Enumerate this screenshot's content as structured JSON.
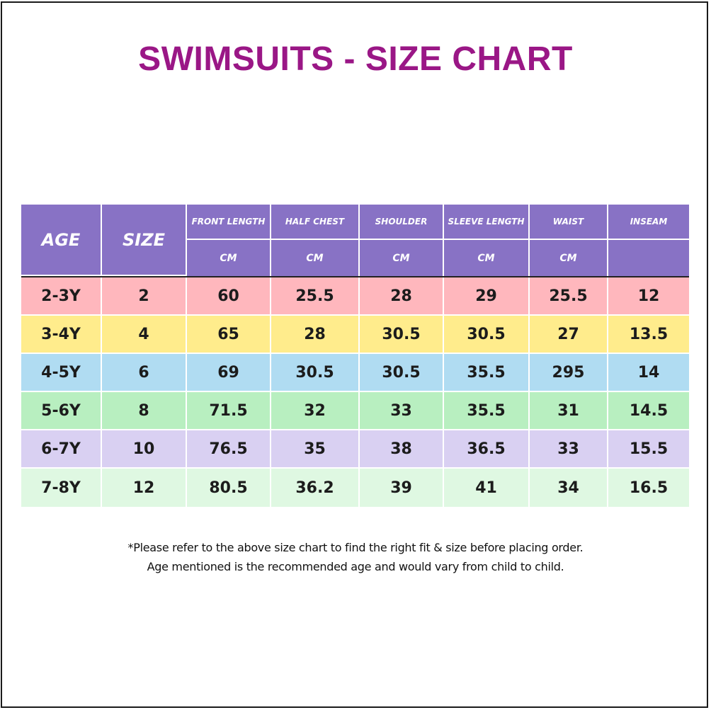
{
  "title": "SWIMSUITS - SIZE CHART",
  "table": {
    "headers": [
      {
        "label": "AGE",
        "unit": ""
      },
      {
        "label": "SIZE",
        "unit": ""
      },
      {
        "label": "FRONT LENGTH",
        "unit": "CM"
      },
      {
        "label": "HALF CHEST",
        "unit": "CM"
      },
      {
        "label": "SHOULDER",
        "unit": "CM"
      },
      {
        "label": "SLEEVE LENGTH",
        "unit": "CM"
      },
      {
        "label": "WAIST",
        "unit": "CM"
      },
      {
        "label": "INSEAM",
        "unit": ""
      }
    ],
    "rows": [
      {
        "color": "#ffb7bd",
        "cells": [
          "2-3Y",
          "2",
          "60",
          "25.5",
          "28",
          "29",
          "25.5",
          "12"
        ]
      },
      {
        "color": "#ffec8c",
        "cells": [
          "3-4Y",
          "4",
          "65",
          "28",
          "30.5",
          "30.5",
          "27",
          "13.5"
        ]
      },
      {
        "color": "#b0dcf2",
        "cells": [
          "4-5Y",
          "6",
          "69",
          "30.5",
          "30.5",
          "35.5",
          "295",
          "14"
        ]
      },
      {
        "color": "#b8efc0",
        "cells": [
          "5-6Y",
          "8",
          "71.5",
          "32",
          "33",
          "35.5",
          "31",
          "14.5"
        ]
      },
      {
        "color": "#d9d0f2",
        "cells": [
          "6-7Y",
          "10",
          "76.5",
          "35",
          "38",
          "36.5",
          "33",
          "15.5"
        ]
      },
      {
        "color": "#dff8e2",
        "cells": [
          "7-8Y",
          "12",
          "80.5",
          "36.2",
          "39",
          "41",
          "34",
          "16.5"
        ]
      }
    ]
  },
  "notes": [
    "*Please refer to the above size chart to find the right fit & size before placing order.",
    "Age mentioned is the recommended age and would vary from child to child."
  ],
  "colors": {
    "title": "#9a1786",
    "header_bg": "#8872c5"
  }
}
